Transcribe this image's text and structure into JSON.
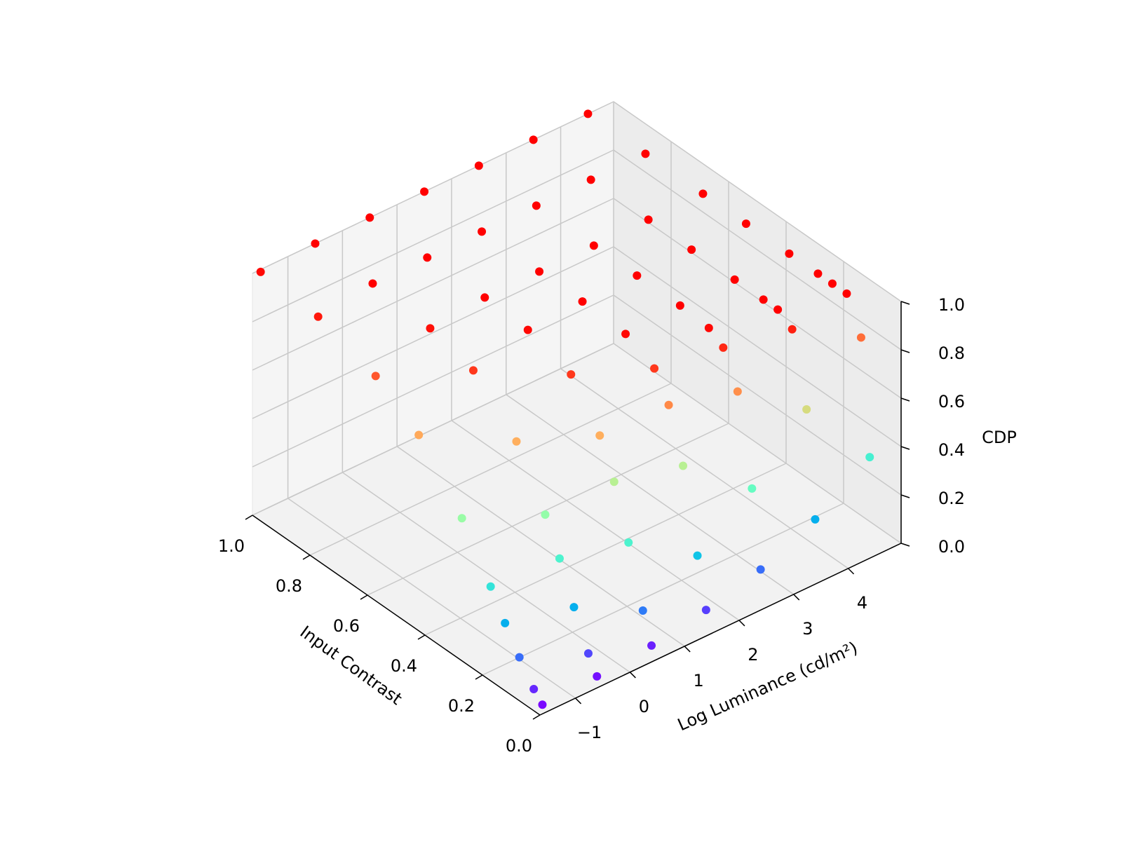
{
  "chart_data": {
    "type": "scatter3d",
    "xlabel": "Log Luminance (cd/m²)",
    "ylabel": "Input Contrast",
    "zlabel": "CDP",
    "colormap": "rainbow",
    "grid": true,
    "xlim": [
      -1.65,
      4.97
    ],
    "ylim": [
      0,
      1
    ],
    "zlim": [
      0,
      1
    ],
    "xticks": [
      {
        "value": -1,
        "label": "−1"
      },
      0,
      1,
      2,
      3,
      4
    ],
    "yticks": [
      {
        "value": 0,
        "label": "0.0"
      },
      0.2,
      0.4,
      0.6,
      0.8,
      {
        "value": 1,
        "label": "1.0"
      }
    ],
    "zticks": [
      {
        "value": 0,
        "label": "0.0"
      },
      0.2,
      0.4,
      0.6,
      0.8,
      {
        "value": 1,
        "label": "1.0"
      }
    ],
    "x": [
      -1.5,
      -1.5,
      -1.5,
      -1.5,
      -1.5,
      -1.5,
      -1.5,
      -1.5,
      -1.5,
      -1.5,
      -0.5,
      -0.5,
      -0.5,
      -0.5,
      -0.5,
      -0.5,
      -0.5,
      -0.5,
      -0.5,
      -0.5,
      0.5,
      0.5,
      0.5,
      0.5,
      0.5,
      0.5,
      0.5,
      0.5,
      0.5,
      0.5,
      1.5,
      1.5,
      1.5,
      1.5,
      1.5,
      1.5,
      1.5,
      1.5,
      1.5,
      1.5,
      2.5,
      2.5,
      2.5,
      2.5,
      2.5,
      2.5,
      2.5,
      2.5,
      2.5,
      2.5,
      3.5,
      3.5,
      3.5,
      3.5,
      3.5,
      3.5,
      3.5,
      3.5,
      3.5,
      3.5,
      4.5,
      4.5,
      4.5,
      4.5,
      4.5,
      4.5,
      4.5,
      4.5,
      4.5,
      4.5
    ],
    "y": [
      0.02,
      0.05,
      0.1,
      0.15,
      0.2,
      0.3,
      0.45,
      0.6,
      0.8,
      1.0,
      0.02,
      0.05,
      0.1,
      0.15,
      0.2,
      0.3,
      0.45,
      0.6,
      0.8,
      1.0,
      0.02,
      0.05,
      0.1,
      0.15,
      0.2,
      0.3,
      0.45,
      0.6,
      0.8,
      1.0,
      0.02,
      0.05,
      0.1,
      0.15,
      0.2,
      0.3,
      0.45,
      0.6,
      0.8,
      1.0,
      0.02,
      0.05,
      0.1,
      0.15,
      0.2,
      0.3,
      0.45,
      0.6,
      0.8,
      1.0,
      0.02,
      0.05,
      0.1,
      0.15,
      0.2,
      0.3,
      0.45,
      0.6,
      0.8,
      1.0,
      0.02,
      0.05,
      0.1,
      0.15,
      0.2,
      0.3,
      0.45,
      0.6,
      0.8,
      1.0
    ],
    "z": [
      0.01,
      0.05,
      0.14,
      0.24,
      0.35,
      0.55,
      0.77,
      0.89,
      0.97,
      0.99,
      0.02,
      0.09,
      0.24,
      0.4,
      0.54,
      0.76,
      0.93,
      0.98,
      1.0,
      1.0,
      0.04,
      0.16,
      0.4,
      0.61,
      0.76,
      0.93,
      0.99,
      1.0,
      1.0,
      1.0,
      0.08,
      0.28,
      0.61,
      0.82,
      0.93,
      0.99,
      1.0,
      1.0,
      1.0,
      1.0,
      0.14,
      0.45,
      0.81,
      0.95,
      0.99,
      1.0,
      1.0,
      1.0,
      1.0,
      1.0,
      0.24,
      0.67,
      0.96,
      1.0,
      1.0,
      1.0,
      1.0,
      1.0,
      1.0,
      1.0,
      0.39,
      0.86,
      1.0,
      1.0,
      1.0,
      1.0,
      1.0,
      1.0,
      1.0,
      1.0
    ]
  }
}
